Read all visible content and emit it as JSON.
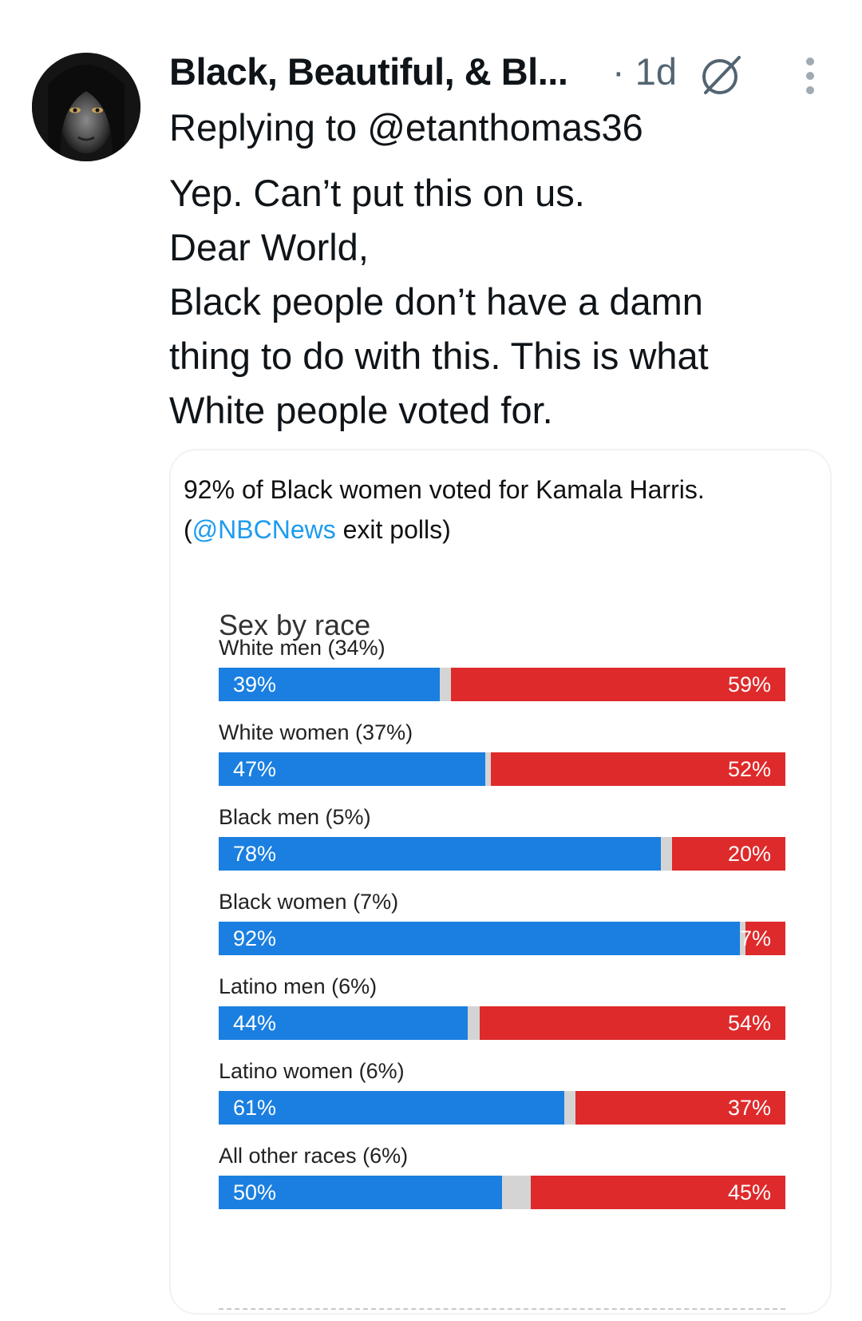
{
  "tweet": {
    "display_name": "Black, Beautiful, & Bl...",
    "timestamp": "· 1d",
    "replying_prefix": "Replying to",
    "replying_handle": "@etanthomas36",
    "text_lines": [
      "Yep. Can’t put this on us.",
      "Dear World,",
      "Black people don’t have a damn",
      "thing to do with this. This is what",
      "White people voted for."
    ]
  },
  "icons": {
    "avatar": "avatar",
    "grok": "grok-icon",
    "more": "more-vertical-icon"
  },
  "card": {
    "caption_line1": "92% of Black women voted for Kamala Harris.",
    "caption_open": "(",
    "caption_mention": "@NBCNews",
    "caption_close": " exit polls)"
  },
  "chart_data": {
    "type": "bar",
    "title": "Sex by race",
    "categories": [
      "White men (34%)",
      "White women (37%)",
      "Black men (5%)",
      "Black women (7%)",
      "Latino men (6%)",
      "Latino women (6%)",
      "All other races (6%)"
    ],
    "series": [
      {
        "values": [
          39,
          47,
          78,
          92,
          44,
          61,
          50
        ]
      },
      {
        "values": [
          59,
          52,
          20,
          7,
          54,
          37,
          45
        ]
      }
    ],
    "value_labels_left": [
      "39%",
      "47%",
      "78%",
      "92%",
      "44%",
      "61%",
      "50%"
    ],
    "value_labels_right": [
      "59%",
      "52%",
      "20%",
      "7%",
      "54%",
      "37%",
      "45%"
    ],
    "ylim": [
      0,
      100
    ],
    "colors": {
      "blue": "#1a7fe0",
      "red": "#de2a2b",
      "other": "#d4d4d4"
    }
  }
}
